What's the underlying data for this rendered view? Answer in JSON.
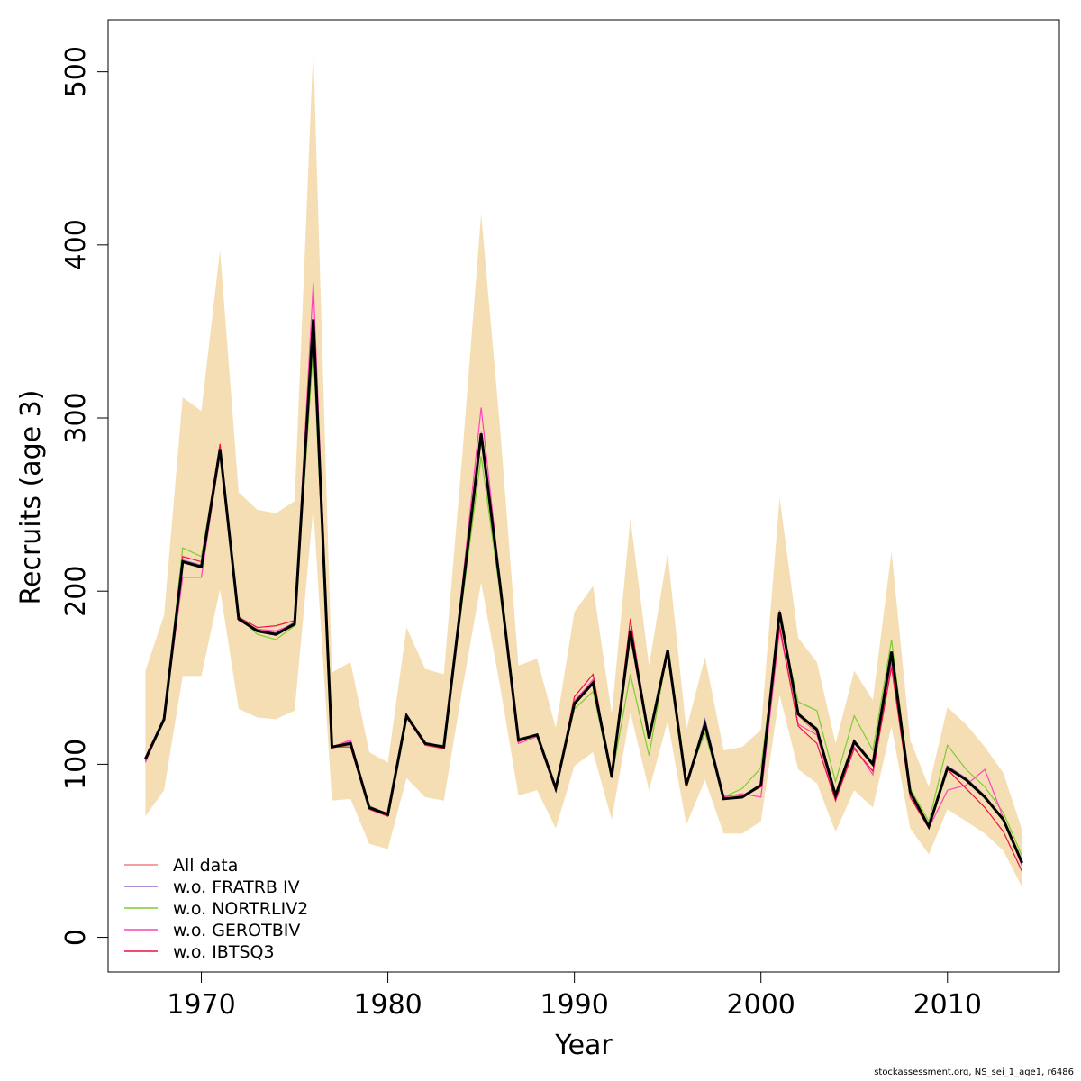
{
  "chart_data": {
    "type": "line",
    "xlabel": "Year",
    "ylabel": "Recruits (age 3)",
    "xlim": [
      1965,
      2016
    ],
    "ylim": [
      -20,
      530
    ],
    "x_ticks": [
      1970,
      1980,
      1990,
      2000,
      2010
    ],
    "y_ticks": [
      0,
      100,
      200,
      300,
      400,
      500
    ],
    "grid": false,
    "legend_position": "bottom-left",
    "x": [
      1967,
      1968,
      1969,
      1970,
      1971,
      1972,
      1973,
      1974,
      1975,
      1976,
      1977,
      1978,
      1979,
      1980,
      1981,
      1982,
      1983,
      1984,
      1985,
      1986,
      1987,
      1988,
      1989,
      1990,
      1991,
      1992,
      1993,
      1994,
      1995,
      1996,
      1997,
      1998,
      1999,
      2000,
      2001,
      2002,
      2003,
      2004,
      2005,
      2006,
      2007,
      2008,
      2009,
      2010,
      2011,
      2012,
      2013,
      2014
    ],
    "estimate": {
      "color": "#000000",
      "values": [
        103,
        126,
        217,
        214,
        282,
        184,
        177,
        175,
        181,
        357,
        110,
        112,
        75,
        71,
        128,
        112,
        110,
        200,
        291,
        205,
        114,
        117,
        86,
        135,
        147,
        93,
        177,
        115,
        166,
        88,
        123,
        80,
        81,
        88,
        188,
        129,
        120,
        82,
        113,
        100,
        165,
        84,
        64,
        98,
        91,
        81,
        68,
        43
      ]
    },
    "confidence_band": {
      "color": "#f5deb3",
      "upper": [
        154,
        186,
        312,
        304,
        397,
        257,
        247,
        245,
        252,
        514,
        153,
        159,
        107,
        101,
        179,
        155,
        152,
        280,
        418,
        296,
        157,
        161,
        121,
        188,
        203,
        129,
        242,
        157,
        222,
        120,
        162,
        108,
        110,
        120,
        254,
        173,
        159,
        112,
        154,
        137,
        223,
        114,
        87,
        133,
        123,
        110,
        95,
        62
      ],
      "lower": [
        70,
        85,
        151,
        151,
        201,
        132,
        127,
        126,
        131,
        248,
        79,
        80,
        54,
        51,
        92,
        81,
        79,
        144,
        205,
        146,
        82,
        85,
        63,
        99,
        107,
        68,
        130,
        85,
        125,
        65,
        91,
        60,
        60,
        67,
        140,
        97,
        89,
        61,
        85,
        75,
        122,
        63,
        48,
        74,
        67,
        60,
        50,
        29
      ]
    },
    "series": [
      {
        "name": "All data",
        "color": "#f08080",
        "values": [
          102,
          126,
          217,
          214,
          283,
          184,
          178,
          176,
          182,
          356,
          109,
          113,
          75,
          71,
          128,
          112,
          109,
          200,
          292,
          205,
          114,
          117,
          86,
          137,
          148,
          93,
          178,
          116,
          166,
          88,
          123,
          80,
          81,
          88,
          186,
          128,
          118,
          81,
          112,
          100,
          163,
          84,
          64,
          98,
          91,
          81,
          68,
          43
        ]
      },
      {
        "name": "w.o. FRATRB IV",
        "color": "#9966cc",
        "values": [
          103,
          126,
          218,
          215,
          282,
          185,
          177,
          176,
          182,
          357,
          110,
          113,
          76,
          71,
          129,
          112,
          110,
          200,
          291,
          206,
          114,
          117,
          87,
          135,
          147,
          93,
          178,
          116,
          166,
          88,
          126,
          82,
          82,
          88,
          189,
          129,
          121,
          82,
          114,
          101,
          165,
          85,
          64,
          99,
          92,
          82,
          68,
          43
        ]
      },
      {
        "name": "w.o. NORTRLIV2",
        "color": "#7ccd32",
        "values": [
          103,
          126,
          225,
          220,
          283,
          185,
          175,
          172,
          180,
          340,
          110,
          111,
          76,
          71,
          129,
          111,
          111,
          195,
          278,
          200,
          115,
          117,
          86,
          132,
          142,
          92,
          152,
          105,
          166,
          90,
          118,
          81,
          86,
          98,
          184,
          136,
          131,
          90,
          128,
          108,
          172,
          86,
          67,
          111,
          97,
          87,
          72,
          47
        ]
      },
      {
        "name": "w.o. GEROTBIV",
        "color": "#ff44bb",
        "values": [
          101,
          126,
          208,
          208,
          280,
          183,
          178,
          177,
          181,
          378,
          110,
          114,
          74,
          70,
          128,
          112,
          109,
          205,
          306,
          207,
          112,
          116,
          86,
          136,
          149,
          93,
          174,
          115,
          166,
          88,
          121,
          81,
          83,
          81,
          178,
          123,
          117,
          79,
          110,
          94,
          159,
          82,
          63,
          85,
          88,
          97,
          69,
          41
        ]
      },
      {
        "name": "w.o. IBTSQ3",
        "color": "#ee1144",
        "values": [
          102,
          126,
          220,
          217,
          285,
          185,
          179,
          180,
          183,
          350,
          110,
          110,
          74,
          70,
          127,
          111,
          109,
          201,
          289,
          205,
          113,
          117,
          86,
          139,
          152,
          92,
          184,
          115,
          166,
          87,
          123,
          80,
          81,
          87,
          180,
          122,
          112,
          79,
          109,
          96,
          156,
          81,
          63,
          97,
          86,
          75,
          61,
          38
        ]
      }
    ]
  },
  "footer_text": "stockassessment.org, NS_sei_1_age1, r6486"
}
